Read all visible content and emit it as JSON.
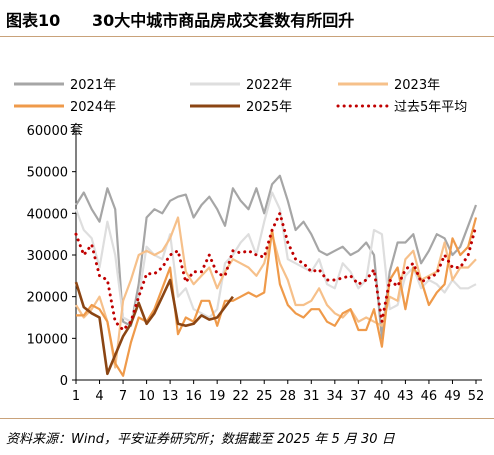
{
  "header": {
    "figure_number": "图表10",
    "title": "30大中城市商品房成交套数有所回升"
  },
  "footer": {
    "source": "资料来源：Wind，平安证券研究所；数据截至 2025 年 5 月 30 日"
  },
  "colors": {
    "s2021": "#a6a6a6",
    "s2022": "#dedede",
    "s2023": "#f6c08a",
    "s2024": "#ef9a4a",
    "s2025": "#8b4513",
    "savg": "#c00000"
  },
  "chart_data": {
    "type": "line",
    "ylabel": "套",
    "ylim": [
      0,
      60000
    ],
    "yticks": [
      0,
      10000,
      20000,
      30000,
      40000,
      50000,
      60000
    ],
    "xlim": [
      1,
      52
    ],
    "xticks": [
      1,
      4,
      7,
      10,
      13,
      16,
      19,
      22,
      25,
      28,
      31,
      34,
      37,
      40,
      43,
      46,
      49,
      52
    ],
    "grid": false,
    "legend": "top, three columns",
    "series": [
      {
        "name": "2021年",
        "style": "solid",
        "color": "#a6a6a6",
        "x": [
          1,
          2,
          3,
          4,
          5,
          6,
          7,
          8,
          9,
          10,
          11,
          12,
          13,
          14,
          15,
          16,
          17,
          18,
          19,
          20,
          21,
          22,
          23,
          24,
          25,
          26,
          27,
          28,
          29,
          30,
          31,
          32,
          33,
          34,
          35,
          36,
          37,
          38,
          39,
          40,
          41,
          42,
          43,
          44,
          45,
          46,
          47,
          48,
          49,
          50,
          51,
          52
        ],
        "values": [
          42000,
          45000,
          41000,
          38000,
          46000,
          41000,
          14000,
          13000,
          23000,
          39000,
          41000,
          40000,
          43000,
          44000,
          44500,
          39000,
          42000,
          44000,
          41000,
          37000,
          46000,
          43000,
          41000,
          46000,
          40000,
          47000,
          49000,
          43000,
          36000,
          38000,
          35000,
          31000,
          30000,
          31000,
          32000,
          30000,
          31000,
          33000,
          30000,
          10000,
          26000,
          33000,
          33000,
          35000,
          28000,
          31000,
          35000,
          34000,
          30000,
          32000,
          37000,
          42000
        ]
      },
      {
        "name": "2022年",
        "style": "solid",
        "color": "#dedede",
        "x": [
          1,
          2,
          3,
          4,
          5,
          6,
          7,
          8,
          9,
          10,
          11,
          12,
          13,
          14,
          15,
          16,
          17,
          18,
          19,
          20,
          21,
          22,
          23,
          24,
          25,
          26,
          27,
          28,
          29,
          30,
          31,
          32,
          33,
          34,
          35,
          36,
          37,
          38,
          39,
          40,
          41,
          42,
          43,
          44,
          45,
          46,
          47,
          48,
          49,
          50,
          51,
          52
        ],
        "values": [
          41000,
          36000,
          34000,
          27000,
          38000,
          30000,
          15000,
          14000,
          20000,
          32000,
          30000,
          29000,
          35000,
          20000,
          22000,
          17000,
          16000,
          15000,
          17000,
          28000,
          30000,
          33000,
          35000,
          30000,
          38000,
          45000,
          41000,
          29000,
          28000,
          27000,
          26000,
          29000,
          23000,
          22000,
          28000,
          26000,
          22000,
          24000,
          36000,
          35000,
          17000,
          18000,
          25000,
          27000,
          22000,
          24000,
          23000,
          21000,
          24000,
          22000,
          22000,
          23000
        ]
      },
      {
        "name": "2023年",
        "style": "solid",
        "color": "#f6c08a",
        "x": [
          1,
          2,
          3,
          4,
          5,
          6,
          7,
          8,
          9,
          10,
          11,
          12,
          13,
          14,
          15,
          16,
          17,
          18,
          19,
          20,
          21,
          22,
          23,
          24,
          25,
          26,
          27,
          28,
          29,
          30,
          31,
          32,
          33,
          34,
          35,
          36,
          37,
          38,
          39,
          40,
          41,
          42,
          43,
          44,
          45,
          46,
          47,
          48,
          49,
          50,
          51,
          52
        ],
        "values": [
          18000,
          15000,
          17000,
          20000,
          14000,
          3000,
          19000,
          24000,
          30000,
          31000,
          30000,
          31000,
          34000,
          39000,
          26000,
          23000,
          25000,
          27000,
          22000,
          26000,
          29000,
          28000,
          27000,
          25000,
          28000,
          35000,
          28000,
          24000,
          18000,
          18000,
          19000,
          22000,
          18000,
          16000,
          15000,
          17000,
          14000,
          15000,
          14000,
          13000,
          20000,
          19000,
          29000,
          31000,
          24000,
          25000,
          26000,
          33000,
          24000,
          27000,
          27000,
          29000
        ]
      },
      {
        "name": "2024年",
        "style": "solid",
        "color": "#ef9a4a",
        "x": [
          1,
          2,
          3,
          4,
          5,
          6,
          7,
          8,
          9,
          10,
          11,
          12,
          13,
          14,
          15,
          16,
          17,
          18,
          19,
          20,
          21,
          22,
          23,
          24,
          25,
          26,
          27,
          28,
          29,
          30,
          31,
          32,
          33,
          34,
          35,
          36,
          37,
          38,
          39,
          40,
          41,
          42,
          43,
          44,
          45,
          46,
          47,
          48,
          49,
          50,
          51,
          52
        ],
        "values": [
          15500,
          15500,
          18000,
          17000,
          14000,
          4000,
          1000,
          9000,
          15000,
          14000,
          17000,
          22000,
          27000,
          11000,
          15000,
          14000,
          19000,
          19000,
          13000,
          19000,
          19000,
          20000,
          21000,
          20000,
          21000,
          36000,
          23000,
          18000,
          16000,
          15000,
          17000,
          17000,
          14000,
          13000,
          16000,
          17000,
          12000,
          12000,
          17000,
          8000,
          24000,
          27000,
          17000,
          27000,
          24000,
          18000,
          21000,
          23000,
          34000,
          30000,
          32000,
          39000
        ]
      },
      {
        "name": "2025年",
        "style": "solid",
        "color": "#8b4513",
        "x": [
          1,
          2,
          3,
          4,
          5,
          6,
          7,
          8,
          9,
          10,
          11,
          12,
          13,
          14,
          15,
          16,
          17,
          18,
          19,
          20,
          21
        ],
        "values": [
          23500,
          17500,
          16000,
          15000,
          1500,
          6000,
          10500,
          13500,
          18500,
          13500,
          16000,
          20000,
          24000,
          13500,
          13000,
          13500,
          15500,
          14500,
          15000,
          17500,
          20000
        ]
      },
      {
        "name": "过去5年平均",
        "style": "dotted",
        "color": "#c00000",
        "x": [
          1,
          2,
          3,
          4,
          5,
          6,
          7,
          8,
          9,
          10,
          11,
          12,
          13,
          14,
          15,
          16,
          17,
          18,
          19,
          20,
          21,
          22,
          23,
          24,
          25,
          26,
          27,
          28,
          29,
          30,
          31,
          32,
          33,
          34,
          35,
          36,
          37,
          38,
          39,
          40,
          41,
          42,
          43,
          44,
          45,
          46,
          47,
          48,
          49,
          50,
          51,
          52
        ],
        "values": [
          35000,
          30000,
          32500,
          25000,
          24000,
          14000,
          12000,
          14000,
          20000,
          25500,
          25500,
          27000,
          30000,
          31000,
          23500,
          26000,
          26000,
          30000,
          25500,
          25000,
          31000,
          30500,
          31000,
          30000,
          29500,
          36000,
          40000,
          33000,
          29000,
          28000,
          26000,
          26500,
          24000,
          24000,
          24500,
          25000,
          23000,
          24000,
          26500,
          14000,
          24000,
          22500,
          26500,
          28000,
          23500,
          24500,
          25500,
          30000,
          27000,
          27000,
          30000,
          37000
        ]
      }
    ]
  }
}
